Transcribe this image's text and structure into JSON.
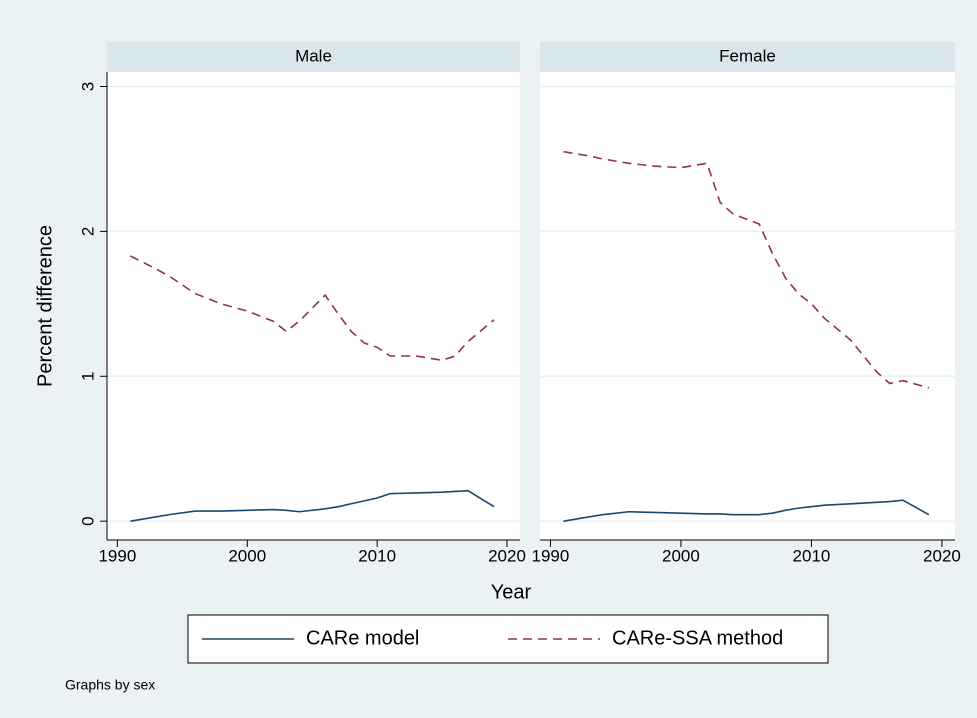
{
  "ylabel": "Percent difference",
  "xlabel": "Year",
  "note": "Graphs by sex",
  "chart_data": [
    {
      "type": "line",
      "title": "Male",
      "x": [
        1991,
        1993,
        1994,
        1996,
        1998,
        2000,
        2002,
        2003,
        2004,
        2006,
        2007,
        2008,
        2009,
        2010,
        2011,
        2013,
        2015,
        2016,
        2017,
        2019
      ],
      "series": [
        {
          "name": "CARe model",
          "color": "#1a476f",
          "dash": false,
          "values": [
            0,
            0.03,
            0.045,
            0.07,
            0.07,
            0.075,
            0.08,
            0.075,
            0.065,
            0.085,
            0.1,
            0.12,
            0.14,
            0.16,
            0.19,
            0.195,
            0.2,
            0.205,
            0.21,
            0.1
          ]
        },
        {
          "name": "CARe-SSA method",
          "color": "#90353b",
          "dash": true,
          "values": [
            1.83,
            1.74,
            1.69,
            1.57,
            1.5,
            1.45,
            1.38,
            1.31,
            1.38,
            1.56,
            1.43,
            1.31,
            1.23,
            1.2,
            1.14,
            1.14,
            1.11,
            1.14,
            1.24,
            1.39
          ]
        }
      ],
      "xlim": [
        1989.2,
        2021
      ],
      "ylim": [
        -0.13,
        3.1
      ],
      "xticks": [
        1990,
        2000,
        2010,
        2020
      ],
      "yticks": [
        0,
        1,
        2,
        3
      ],
      "grid": true
    },
    {
      "type": "line",
      "title": "Female",
      "x": [
        1991,
        1993,
        1994,
        1996,
        1998,
        2000,
        2002,
        2003,
        2004,
        2006,
        2007,
        2008,
        2009,
        2010,
        2011,
        2013,
        2015,
        2016,
        2017,
        2019
      ],
      "series": [
        {
          "name": "CARe model",
          "color": "#1a476f",
          "dash": false,
          "values": [
            0,
            0.03,
            0.045,
            0.065,
            0.06,
            0.055,
            0.05,
            0.05,
            0.045,
            0.045,
            0.055,
            0.075,
            0.09,
            0.1,
            0.11,
            0.12,
            0.13,
            0.135,
            0.145,
            0.045
          ]
        },
        {
          "name": "CARe-SSA method",
          "color": "#90353b",
          "dash": true,
          "values": [
            2.55,
            2.52,
            2.5,
            2.47,
            2.45,
            2.44,
            2.47,
            2.2,
            2.12,
            2.05,
            1.85,
            1.68,
            1.57,
            1.5,
            1.4,
            1.25,
            1.03,
            0.95,
            0.97,
            0.92
          ]
        }
      ],
      "xlim": [
        1989.2,
        2021
      ],
      "ylim": [
        -0.13,
        3.1
      ],
      "xticks": [
        1990,
        2000,
        2010,
        2020
      ],
      "yticks": [
        0,
        1,
        2,
        3
      ],
      "grid": true
    }
  ]
}
